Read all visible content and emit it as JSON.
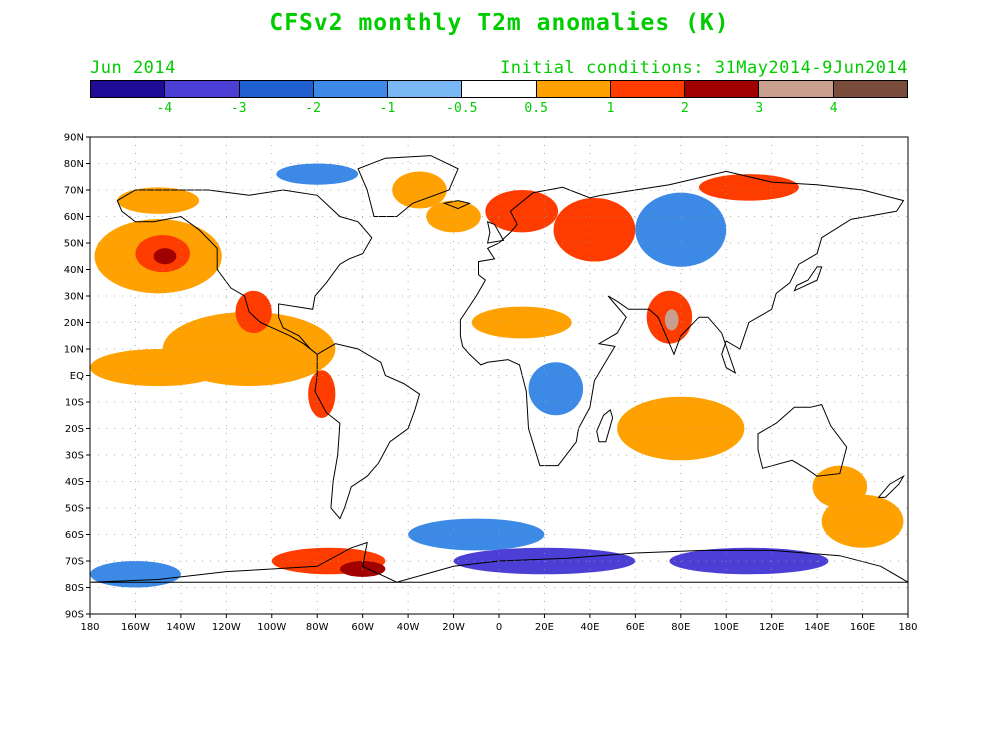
{
  "title": "CFSv2 monthly T2m anomalies (K)",
  "subtitle_left": "Jun 2014",
  "subtitle_right": "Initial conditions: 31May2014-9Jun2014",
  "text_color": "#00cc00",
  "colorbar": {
    "colors": [
      "#1e0b96",
      "#4c3fd6",
      "#1f5fcf",
      "#3d8ae6",
      "#7ab7f5",
      "#ffffff",
      "#ffa100",
      "#ff3c00",
      "#a00000",
      "#c9a090",
      "#7a4c3c"
    ],
    "labels": [
      "-4",
      "-3",
      "-2",
      "-1",
      "-0.5",
      "0.5",
      "1",
      "2",
      "3",
      "4"
    ]
  },
  "map": {
    "lat_labels": [
      "90N",
      "80N",
      "70N",
      "60N",
      "50N",
      "40N",
      "30N",
      "20N",
      "10N",
      "EQ",
      "10S",
      "20S",
      "30S",
      "40S",
      "50S",
      "60S",
      "70S",
      "80S",
      "90S"
    ],
    "lon_labels": [
      "180",
      "160W",
      "140W",
      "120W",
      "100W",
      "80W",
      "60W",
      "40W",
      "20W",
      "0",
      "20E",
      "40E",
      "60E",
      "80E",
      "100E",
      "120E",
      "140E",
      "160E",
      "180"
    ],
    "grid": true,
    "anomaly_regions": [
      {
        "name": "north-pacific-warm",
        "lon": -150,
        "lat": 45,
        "rlon": 28,
        "rlat": 14,
        "level": "1"
      },
      {
        "name": "north-pacific-warm-core",
        "lon": -148,
        "lat": 46,
        "rlon": 12,
        "rlat": 7,
        "level": "2"
      },
      {
        "name": "north-pacific-hot-center",
        "lon": -147,
        "lat": 45,
        "rlon": 5,
        "rlat": 3,
        "level": "3"
      },
      {
        "name": "east-pacific-warm",
        "lon": -110,
        "lat": 10,
        "rlon": 38,
        "rlat": 14,
        "level": "1"
      },
      {
        "name": "mexico-warm",
        "lon": -108,
        "lat": 24,
        "rlon": 8,
        "rlat": 8,
        "level": "2"
      },
      {
        "name": "tropical-pacific-warm",
        "lon": -150,
        "lat": 3,
        "rlon": 30,
        "rlat": 7,
        "level": "1"
      },
      {
        "name": "peru-warm",
        "lon": -78,
        "lat": -7,
        "rlon": 6,
        "rlat": 9,
        "level": "2"
      },
      {
        "name": "alaska-warm",
        "lon": -150,
        "lat": 66,
        "rlon": 18,
        "rlat": 5,
        "level": "1"
      },
      {
        "name": "arctic-canada-cool",
        "lon": -80,
        "lat": 76,
        "rlon": 18,
        "rlat": 4,
        "level": "-1"
      },
      {
        "name": "greenland-warm",
        "lon": -35,
        "lat": 70,
        "rlon": 12,
        "rlat": 7,
        "level": "1"
      },
      {
        "name": "north-atlantic-warm",
        "lon": -20,
        "lat": 60,
        "rlon": 12,
        "rlat": 6,
        "level": "1"
      },
      {
        "name": "europe-warm",
        "lon": 10,
        "lat": 62,
        "rlon": 16,
        "rlat": 8,
        "level": "2"
      },
      {
        "name": "russia-warm",
        "lon": 42,
        "lat": 55,
        "rlon": 18,
        "rlat": 12,
        "level": "2"
      },
      {
        "name": "siberia-cool",
        "lon": 80,
        "lat": 55,
        "rlon": 20,
        "rlat": 14,
        "level": "-1"
      },
      {
        "name": "north-siberia-warm",
        "lon": 110,
        "lat": 71,
        "rlon": 22,
        "rlat": 5,
        "level": "2"
      },
      {
        "name": "india-warm",
        "lon": 75,
        "lat": 22,
        "rlon": 10,
        "rlat": 10,
        "level": "2"
      },
      {
        "name": "india-hot",
        "lon": 76,
        "lat": 21,
        "rlon": 3,
        "rlat": 4,
        "level": "4"
      },
      {
        "name": "sahara-warm",
        "lon": 10,
        "lat": 20,
        "rlon": 22,
        "rlat": 6,
        "level": "1"
      },
      {
        "name": "africa-cool",
        "lon": 25,
        "lat": -5,
        "rlon": 12,
        "rlat": 10,
        "level": "-1"
      },
      {
        "name": "indian-ocean-warm",
        "lon": 80,
        "lat": -20,
        "rlon": 28,
        "rlat": 12,
        "level": "1"
      },
      {
        "name": "australia-warm",
        "lon": 150,
        "lat": -42,
        "rlon": 12,
        "rlat": 8,
        "level": "1"
      },
      {
        "name": "south-pacific-warm",
        "lon": 160,
        "lat": -55,
        "rlon": 18,
        "rlat": 10,
        "level": "1"
      },
      {
        "name": "south-atlantic-cool",
        "lon": -10,
        "lat": -60,
        "rlon": 30,
        "rlat": 6,
        "level": "-1"
      },
      {
        "name": "southern-ocean-cold",
        "lon": 20,
        "lat": -70,
        "rlon": 40,
        "rlat": 5,
        "level": "-3"
      },
      {
        "name": "east-antarctica-cold",
        "lon": 110,
        "lat": -70,
        "rlon": 35,
        "rlat": 5,
        "level": "-3"
      },
      {
        "name": "antarctic-peninsula-warm",
        "lon": -75,
        "lat": -70,
        "rlon": 25,
        "rlat": 5,
        "level": "2"
      },
      {
        "name": "weddell-warm",
        "lon": -60,
        "lat": -73,
        "rlon": 10,
        "rlat": 3,
        "level": "3"
      },
      {
        "name": "ross-sea-cool",
        "lon": -160,
        "lat": -75,
        "rlon": 20,
        "rlat": 5,
        "level": "-1"
      }
    ],
    "continents": [
      {
        "name": "north-america",
        "points": [
          [
            -168,
            66
          ],
          [
            -160,
            70
          ],
          [
            -140,
            70
          ],
          [
            -128,
            70
          ],
          [
            -110,
            68
          ],
          [
            -95,
            70
          ],
          [
            -80,
            68
          ],
          [
            -70,
            60
          ],
          [
            -62,
            58
          ],
          [
            -56,
            52
          ],
          [
            -60,
            46
          ],
          [
            -66,
            44
          ],
          [
            -70,
            42
          ],
          [
            -76,
            35
          ],
          [
            -81,
            30
          ],
          [
            -82,
            25
          ],
          [
            -97,
            27
          ],
          [
            -97,
            22
          ],
          [
            -95,
            18
          ],
          [
            -88,
            15
          ],
          [
            -83,
            10
          ],
          [
            -80,
            8
          ],
          [
            -86,
            12
          ],
          [
            -92,
            15
          ],
          [
            -105,
            20
          ],
          [
            -110,
            24
          ],
          [
            -112,
            30
          ],
          [
            -118,
            33
          ],
          [
            -124,
            40
          ],
          [
            -124,
            48
          ],
          [
            -132,
            55
          ],
          [
            -140,
            60
          ],
          [
            -152,
            58
          ],
          [
            -160,
            58
          ],
          [
            -166,
            62
          ]
        ]
      },
      {
        "name": "greenland",
        "points": [
          [
            -55,
            60
          ],
          [
            -45,
            60
          ],
          [
            -38,
            65
          ],
          [
            -22,
            70
          ],
          [
            -18,
            78
          ],
          [
            -30,
            83
          ],
          [
            -50,
            82
          ],
          [
            -62,
            78
          ],
          [
            -58,
            70
          ]
        ]
      },
      {
        "name": "south-america",
        "points": [
          [
            -80,
            8
          ],
          [
            -72,
            12
          ],
          [
            -62,
            10
          ],
          [
            -52,
            5
          ],
          [
            -50,
            0
          ],
          [
            -42,
            -3
          ],
          [
            -35,
            -7
          ],
          [
            -37,
            -13
          ],
          [
            -40,
            -20
          ],
          [
            -48,
            -25
          ],
          [
            -53,
            -33
          ],
          [
            -58,
            -38
          ],
          [
            -65,
            -42
          ],
          [
            -68,
            -50
          ],
          [
            -70,
            -54
          ],
          [
            -74,
            -50
          ],
          [
            -73,
            -40
          ],
          [
            -71,
            -30
          ],
          [
            -70,
            -18
          ],
          [
            -76,
            -14
          ],
          [
            -81,
            -6
          ],
          [
            -80,
            0
          ]
        ]
      },
      {
        "name": "africa-eurasia",
        "points": [
          [
            -17,
            15
          ],
          [
            -17,
            21
          ],
          [
            -10,
            30
          ],
          [
            -6,
            36
          ],
          [
            -9,
            38
          ],
          [
            -9,
            43
          ],
          [
            -2,
            44
          ],
          [
            -5,
            48
          ],
          [
            0,
            50
          ],
          [
            5,
            54
          ],
          [
            8,
            57
          ],
          [
            5,
            62
          ],
          [
            15,
            69
          ],
          [
            28,
            71
          ],
          [
            40,
            67
          ],
          [
            45,
            68
          ],
          [
            60,
            70
          ],
          [
            75,
            72
          ],
          [
            100,
            77
          ],
          [
            120,
            73
          ],
          [
            140,
            72
          ],
          [
            160,
            70
          ],
          [
            178,
            66
          ],
          [
            175,
            62
          ],
          [
            162,
            60
          ],
          [
            155,
            59
          ],
          [
            142,
            52
          ],
          [
            140,
            46
          ],
          [
            132,
            42
          ],
          [
            128,
            35
          ],
          [
            122,
            31
          ],
          [
            120,
            25
          ],
          [
            110,
            20
          ],
          [
            106,
            10
          ],
          [
            100,
            13
          ],
          [
            98,
            8
          ],
          [
            100,
            3
          ],
          [
            104,
            1
          ],
          [
            98,
            16
          ],
          [
            92,
            22
          ],
          [
            88,
            22
          ],
          [
            80,
            15
          ],
          [
            77,
            8
          ],
          [
            73,
            16
          ],
          [
            70,
            22
          ],
          [
            66,
            25
          ],
          [
            57,
            25
          ],
          [
            52,
            28
          ],
          [
            48,
            30
          ],
          [
            56,
            22
          ],
          [
            52,
            16
          ],
          [
            44,
            12
          ],
          [
            51,
            11
          ],
          [
            42,
            -2
          ],
          [
            40,
            -12
          ],
          [
            35,
            -20
          ],
          [
            34,
            -25
          ],
          [
            26,
            -34
          ],
          [
            18,
            -34
          ],
          [
            13,
            -20
          ],
          [
            12,
            -6
          ],
          [
            9,
            4
          ],
          [
            4,
            6
          ],
          [
            -5,
            5
          ],
          [
            -8,
            4
          ],
          [
            -13,
            8
          ],
          [
            -16,
            11
          ]
        ]
      },
      {
        "name": "australia",
        "points": [
          [
            114,
            -22
          ],
          [
            122,
            -18
          ],
          [
            130,
            -12
          ],
          [
            137,
            -12
          ],
          [
            142,
            -11
          ],
          [
            146,
            -19
          ],
          [
            153,
            -27
          ],
          [
            150,
            -37
          ],
          [
            140,
            -38
          ],
          [
            135,
            -35
          ],
          [
            129,
            -32
          ],
          [
            116,
            -35
          ],
          [
            114,
            -28
          ]
        ]
      },
      {
        "name": "antarctica",
        "points": [
          [
            -180,
            -78
          ],
          [
            -150,
            -77
          ],
          [
            -120,
            -74
          ],
          [
            -100,
            -73
          ],
          [
            -80,
            -72
          ],
          [
            -65,
            -65
          ],
          [
            -58,
            -63
          ],
          [
            -60,
            -72
          ],
          [
            -45,
            -78
          ],
          [
            -20,
            -72
          ],
          [
            0,
            -70
          ],
          [
            30,
            -69
          ],
          [
            60,
            -67
          ],
          [
            90,
            -66
          ],
          [
            120,
            -66
          ],
          [
            150,
            -68
          ],
          [
            168,
            -72
          ],
          [
            180,
            -78
          ]
        ]
      },
      {
        "name": "madagascar",
        "points": [
          [
            44,
            -25
          ],
          [
            43,
            -21
          ],
          [
            46,
            -15
          ],
          [
            49,
            -13
          ],
          [
            50,
            -16
          ],
          [
            47,
            -25
          ]
        ]
      },
      {
        "name": "britain",
        "points": [
          [
            -5,
            50
          ],
          [
            2,
            51
          ],
          [
            0,
            54
          ],
          [
            -2,
            57
          ],
          [
            -5,
            58
          ],
          [
            -4,
            54
          ]
        ]
      },
      {
        "name": "japan",
        "points": [
          [
            130,
            32
          ],
          [
            135,
            34
          ],
          [
            140,
            36
          ],
          [
            142,
            41
          ],
          [
            140,
            41
          ],
          [
            136,
            36
          ],
          [
            131,
            34
          ]
        ]
      },
      {
        "name": "new-zealand",
        "points": [
          [
            167,
            -46
          ],
          [
            172,
            -41
          ],
          [
            178,
            -38
          ],
          [
            176,
            -41
          ],
          [
            170,
            -46
          ]
        ]
      },
      {
        "name": "iceland",
        "points": [
          [
            -24,
            65
          ],
          [
            -18,
            66
          ],
          [
            -13,
            65
          ],
          [
            -18,
            63
          ]
        ]
      }
    ]
  }
}
